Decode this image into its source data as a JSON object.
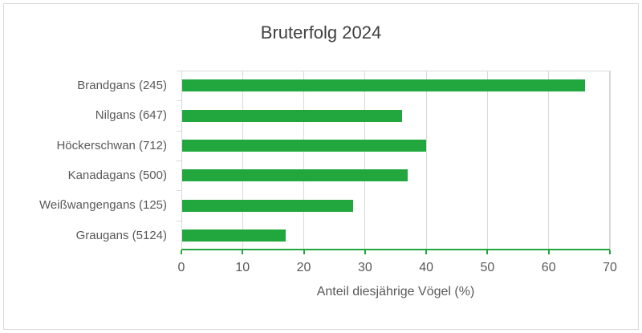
{
  "chart_data": {
    "type": "bar",
    "orientation": "horizontal",
    "title": "Bruterfolg 2024",
    "categories": [
      "Brandgans (245)",
      "Nilgans (647)",
      "Höckerschwan (712)",
      "Kanadagans (500)",
      "Weißwangengans (125)",
      "Graugans (5124)"
    ],
    "values": [
      66,
      36,
      40,
      37,
      28,
      17
    ],
    "xlabel": "Anteil diesjährige Vögel (%)",
    "ylabel": "",
    "xlim": [
      0,
      70
    ],
    "xticks": [
      0,
      10,
      20,
      30,
      40,
      50,
      60,
      70
    ],
    "grid": "vertical-major",
    "legend": "none",
    "colors": {
      "bar": "#21a73e",
      "axis_line": "#21a73e",
      "gridline": "#d9d9d9",
      "title_text": "#404040",
      "label_text": "#595959",
      "chart_border": "#d9d9d9",
      "background": "#ffffff"
    }
  }
}
